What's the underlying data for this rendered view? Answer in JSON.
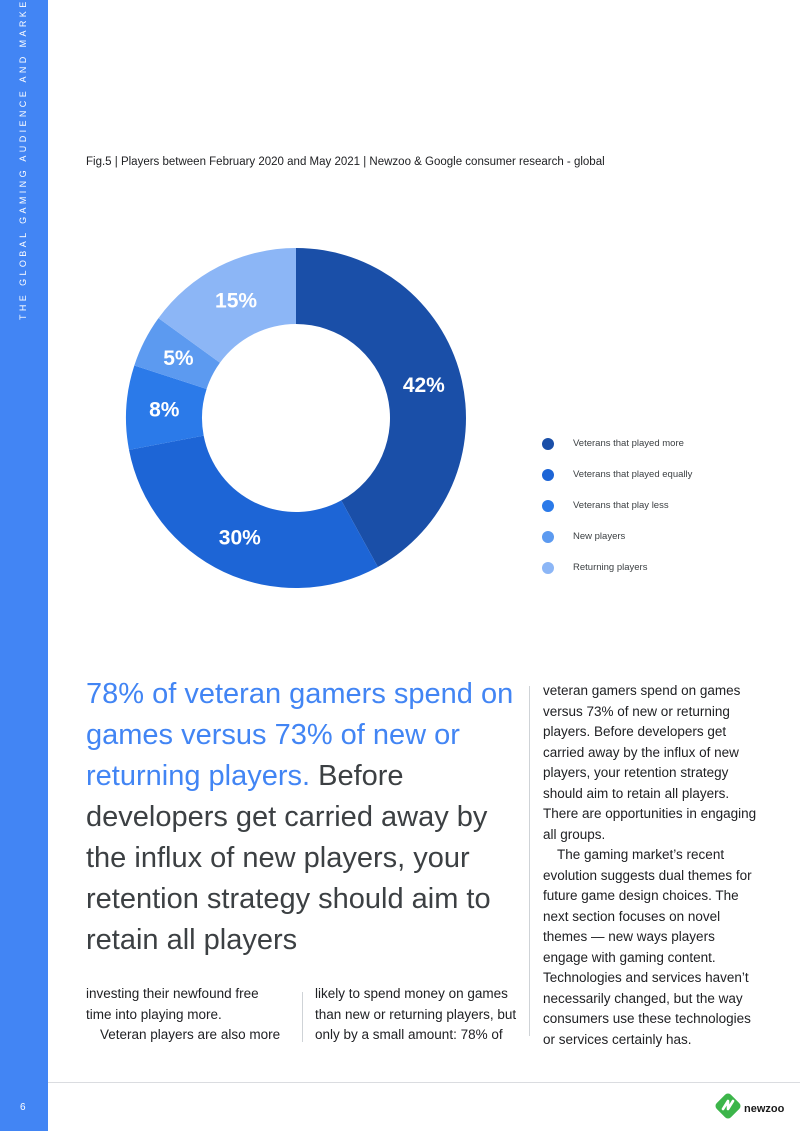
{
  "sidebar": {
    "title": "THE GLOBAL GAMING AUDIENCE AND MARKET",
    "page_number": "6"
  },
  "figure": {
    "caption": "Fig.5 | Players between February 2020 and May 2021 | Newzoo & Google consumer research - global"
  },
  "chart_data": {
    "type": "pie",
    "style": "donut",
    "title": "Players between February 2020 and May 2021",
    "categories": [
      "Veterans that played more",
      "Veterans that played equally",
      "Veterans that play less",
      "New players",
      "Returning players"
    ],
    "values": [
      42,
      30,
      8,
      5,
      15
    ],
    "labels": [
      "42%",
      "30%",
      "8%",
      "5%",
      "15%"
    ],
    "colors": [
      "#1a4fa8",
      "#1d65d6",
      "#2b7ae9",
      "#5c9af0",
      "#8cb6f6"
    ],
    "legend_position": "right"
  },
  "pull_quote": {
    "highlight": "78% of veteran gamers spend on games versus 73% of new or returning players.",
    "rest": " Before developers get carried away by the influx of new players, your retention strategy should aim to retain all players"
  },
  "body": {
    "col1_p1": "investing their newfound free time into playing more.",
    "col1_p2": "Veteran players are also more",
    "col2_p1": "likely to spend money on games than new or returning players, but only by a small amount: 78% of",
    "col3_p1": "veteran gamers spend on games versus 73% of new or returning players. Before developers get carried away by the influx of new players, your retention strategy should aim to retain all players. There are opportunities in engaging all groups.",
    "col3_p2": "The gaming market’s recent evolution suggests dual themes for future game design choices. The next section focuses on novel themes — new ways players engage with gaming content. Technologies and services haven’t necessarily changed, but the way consumers use these technologies or services certainly has."
  },
  "logo": {
    "text": "newzoo",
    "color": "#3cb54a"
  }
}
